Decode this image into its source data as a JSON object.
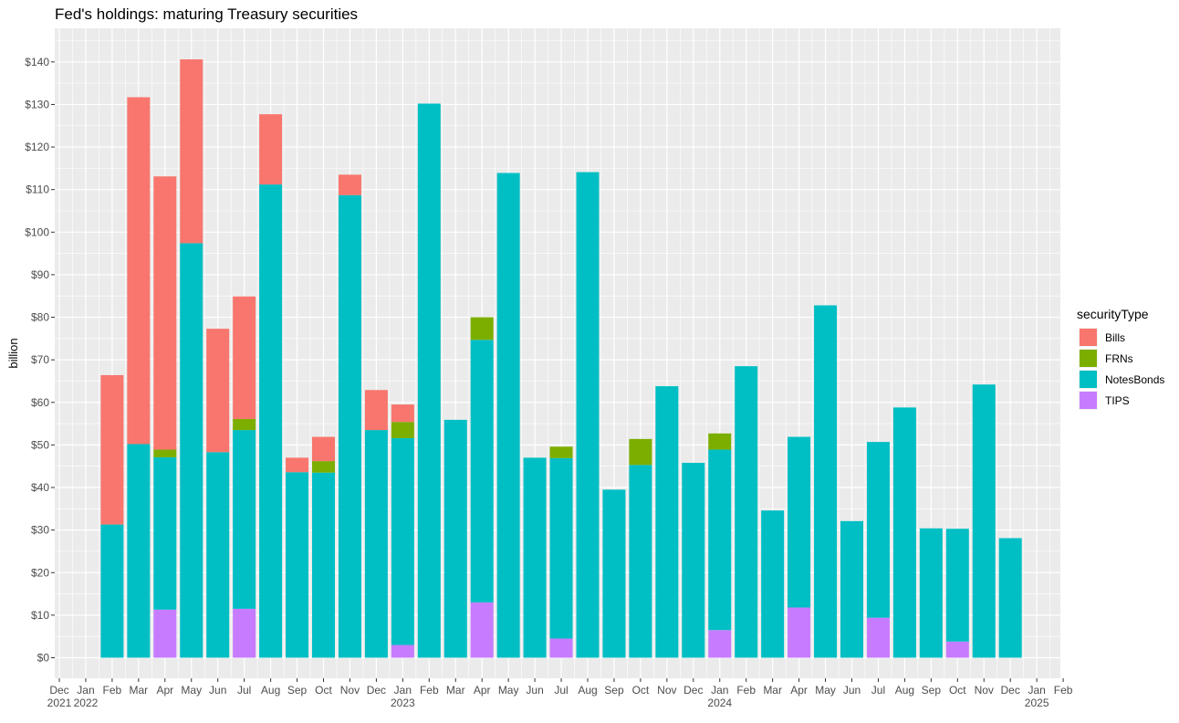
{
  "chart_data": {
    "type": "bar",
    "stacked": true,
    "title": "Fed's holdings: maturing Treasury securities",
    "xlabel": "",
    "ylabel": "billion",
    "ylim": [
      -5,
      144
    ],
    "yticks": [
      0,
      10,
      20,
      30,
      40,
      50,
      60,
      70,
      80,
      90,
      100,
      110,
      120,
      130,
      140
    ],
    "ytick_labels": [
      "$0",
      "$10",
      "$20",
      "$30",
      "$40",
      "$50",
      "$60",
      "$70",
      "$80",
      "$90",
      "$100",
      "$110",
      "$120",
      "$130",
      "$140"
    ],
    "xtick_months": [
      "Dec",
      "Jan",
      "Feb",
      "Mar",
      "Apr",
      "May",
      "Jun",
      "Jul",
      "Aug",
      "Sep",
      "Oct",
      "Nov",
      "Dec",
      "Jan",
      "Feb",
      "Mar",
      "Apr",
      "May",
      "Jun",
      "Jul",
      "Aug",
      "Sep",
      "Oct",
      "Nov",
      "Dec",
      "Jan",
      "Feb",
      "Mar",
      "Apr",
      "May",
      "Jun",
      "Jul",
      "Aug",
      "Sep",
      "Oct",
      "Nov",
      "Dec",
      "Jan",
      "Feb"
    ],
    "xtick_years": [
      "2021",
      "2022",
      "",
      "",
      "",
      "",
      "",
      "",
      "",
      "",
      "",
      "",
      "",
      "2023",
      "",
      "",
      "",
      "",
      "",
      "",
      "",
      "",
      "",
      "",
      "",
      "2024",
      "",
      "",
      "",
      "",
      "",
      "",
      "",
      "",
      "",
      "",
      "",
      "2025",
      ""
    ],
    "categories": [
      "2022-02",
      "2022-03",
      "2022-04",
      "2022-05",
      "2022-06",
      "2022-07",
      "2022-08",
      "2022-09",
      "2022-10",
      "2022-11",
      "2022-12",
      "2023-01",
      "2023-02",
      "2023-03",
      "2023-04",
      "2023-05",
      "2023-06",
      "2023-07",
      "2023-08",
      "2023-09",
      "2023-10",
      "2023-11",
      "2023-12",
      "2024-01",
      "2024-02",
      "2024-03",
      "2024-04",
      "2024-05",
      "2024-06",
      "2024-07",
      "2024-08",
      "2024-09",
      "2024-10",
      "2024-11",
      "2024-12"
    ],
    "series": [
      {
        "name": "TIPS",
        "color": "#C77CFF",
        "values": [
          0,
          0,
          11.3,
          0,
          0,
          11.5,
          0,
          0,
          0,
          0,
          0,
          3.0,
          0,
          0,
          13.0,
          0,
          0,
          4.5,
          0,
          0,
          0,
          0,
          0,
          6.5,
          0,
          0,
          11.8,
          0,
          0,
          9.4,
          0,
          0,
          3.8,
          0,
          0
        ]
      },
      {
        "name": "NotesBonds",
        "color": "#00BFC4",
        "values": [
          31.3,
          50.2,
          35.8,
          97.4,
          48.3,
          42.0,
          111.2,
          43.6,
          43.5,
          108.7,
          53.5,
          48.6,
          130.2,
          55.9,
          61.7,
          113.9,
          47.0,
          42.4,
          114.1,
          39.5,
          45.3,
          63.8,
          45.8,
          42.4,
          68.5,
          34.6,
          40.1,
          82.8,
          32.1,
          41.3,
          58.8,
          30.4,
          26.5,
          64.2,
          28.1
        ]
      },
      {
        "name": "FRNs",
        "color": "#7CAE00",
        "values": [
          0,
          0,
          1.8,
          0,
          0,
          2.6,
          0,
          0,
          2.7,
          0,
          0,
          3.8,
          0,
          0,
          5.3,
          0,
          0,
          2.7,
          0,
          0,
          6.1,
          0,
          0,
          3.8,
          0,
          0,
          0,
          0,
          0,
          0,
          0,
          0,
          0,
          0,
          0
        ]
      },
      {
        "name": "Bills",
        "color": "#F8766D",
        "values": [
          35.1,
          81.5,
          64.2,
          43.2,
          29.0,
          28.8,
          16.5,
          3.4,
          5.7,
          4.8,
          9.4,
          4.1,
          0,
          0,
          0,
          0,
          0,
          0,
          0,
          0,
          0,
          0,
          0,
          0,
          0,
          0,
          0,
          0,
          0,
          0,
          0,
          0,
          0,
          0,
          0
        ]
      }
    ],
    "legend": {
      "title": "securityType",
      "placement": "right",
      "entries": [
        {
          "label": "Bills",
          "color": "#F8766D"
        },
        {
          "label": "FRNs",
          "color": "#7CAE00"
        },
        {
          "label": "NotesBonds",
          "color": "#00BFC4"
        },
        {
          "label": "TIPS",
          "color": "#C77CFF"
        }
      ]
    },
    "grid": true,
    "panel_background": "#EBEBEB"
  }
}
